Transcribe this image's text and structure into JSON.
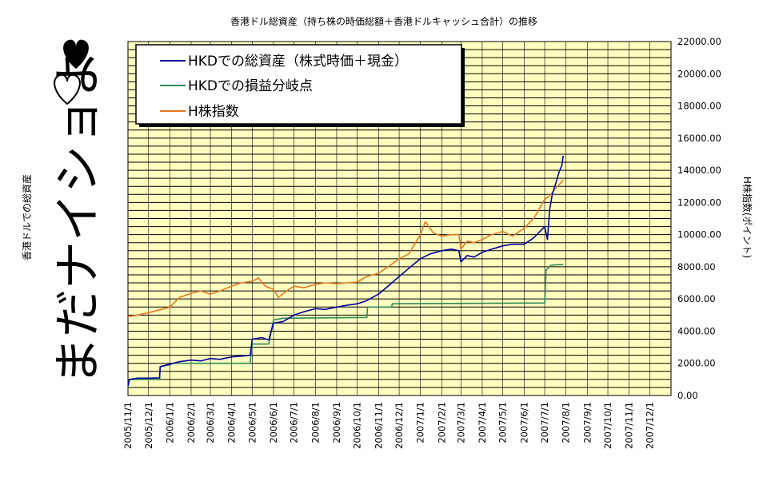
{
  "chart_data": {
    "type": "line",
    "title": "香港ドル総資産（持ち株の時価総額＋香港ドルキャッシュ合計）の推移",
    "ylabel_left": "香港ドルでの総資産",
    "ylabel_right": "H株指数(ポイント)",
    "side_text": "まだナイショよ",
    "ylim": [
      0,
      22000
    ],
    "y_ticks": [
      "0.00",
      "2000.00",
      "4000.00",
      "6000.00",
      "8000.00",
      "10000.00",
      "12000.00",
      "14000.00",
      "16000.00",
      "18000.00",
      "20000.00",
      "22000.00"
    ],
    "x_ticks": [
      "2005/11/1",
      "2005/12/1",
      "2006/1/1",
      "2006/2/1",
      "2006/3/1",
      "2006/4/1",
      "2006/5/1",
      "2006/6/1",
      "2006/7/1",
      "2006/8/1",
      "2006/9/1",
      "2006/10/1",
      "2006/11/1",
      "2006/12/1",
      "2007/1/1",
      "2007/2/1",
      "2007/3/1",
      "2007/4/1",
      "2007/5/1",
      "2007/6/1",
      "2007/7/1",
      "2007/8/1",
      "2007/9/1",
      "2007/10/1",
      "2007/11/1",
      "2007/12/1"
    ],
    "grid": true,
    "legend_position": "top-left",
    "series": [
      {
        "name": "HKDでの総資産（株式時価＋現金）",
        "color": "#0000a0",
        "points": [
          [
            "2005/11/1",
            600
          ],
          [
            "2005/11/3",
            1000
          ],
          [
            "2005/11/15",
            1080
          ],
          [
            "2005/12/1",
            1080
          ],
          [
            "2005/12/17",
            1100
          ],
          [
            "2005/12/18",
            1800
          ],
          [
            "2006/1/1",
            1950
          ],
          [
            "2006/1/15",
            2100
          ],
          [
            "2006/2/1",
            2200
          ],
          [
            "2006/2/15",
            2150
          ],
          [
            "2006/3/1",
            2300
          ],
          [
            "2006/3/15",
            2250
          ],
          [
            "2006/4/1",
            2400
          ],
          [
            "2006/4/15",
            2450
          ],
          [
            "2006/4/28",
            2500
          ],
          [
            "2006/5/1",
            3500
          ],
          [
            "2006/5/15",
            3600
          ],
          [
            "2006/5/25",
            3450
          ],
          [
            "2006/6/1",
            4500
          ],
          [
            "2006/6/15",
            4600
          ],
          [
            "2006/7/1",
            5000
          ],
          [
            "2006/7/15",
            5200
          ],
          [
            "2006/8/1",
            5400
          ],
          [
            "2006/8/15",
            5350
          ],
          [
            "2006/9/1",
            5500
          ],
          [
            "2006/9/15",
            5600
          ],
          [
            "2006/10/1",
            5700
          ],
          [
            "2006/10/15",
            5900
          ],
          [
            "2006/11/1",
            6300
          ],
          [
            "2006/11/15",
            6800
          ],
          [
            "2006/12/1",
            7400
          ],
          [
            "2006/12/15",
            7900
          ],
          [
            "2007/1/1",
            8500
          ],
          [
            "2007/1/15",
            8800
          ],
          [
            "2007/2/1",
            9000
          ],
          [
            "2007/2/15",
            9100
          ],
          [
            "2007/2/26",
            9000
          ],
          [
            "2007/3/1",
            8300
          ],
          [
            "2007/3/10",
            8700
          ],
          [
            "2007/3/20",
            8600
          ],
          [
            "2007/4/1",
            8900
          ],
          [
            "2007/4/15",
            9100
          ],
          [
            "2007/5/1",
            9300
          ],
          [
            "2007/5/15",
            9400
          ],
          [
            "2007/6/1",
            9400
          ],
          [
            "2007/6/15",
            9800
          ],
          [
            "2007/7/1",
            10500
          ],
          [
            "2007/7/5",
            9700
          ],
          [
            "2007/7/8",
            11500
          ],
          [
            "2007/7/12",
            12500
          ],
          [
            "2007/7/18",
            13300
          ],
          [
            "2007/7/22",
            13900
          ],
          [
            "2007/7/26",
            14300
          ],
          [
            "2007/7/28",
            14900
          ]
        ]
      },
      {
        "name": "HKDでの損益分岐点",
        "color": "#2e8b57",
        "points": [
          [
            "2005/11/1",
            500
          ],
          [
            "2005/11/3",
            1000
          ],
          [
            "2005/12/17",
            1000
          ],
          [
            "2005/12/18",
            1800
          ],
          [
            "2006/1/1",
            1900
          ],
          [
            "2006/1/5",
            2000
          ],
          [
            "2006/4/28",
            2000
          ],
          [
            "2006/5/1",
            3200
          ],
          [
            "2006/5/25",
            3200
          ],
          [
            "2006/6/1",
            4700
          ],
          [
            "2006/6/15",
            4800
          ],
          [
            "2006/10/15",
            4850
          ],
          [
            "2006/10/16",
            5500
          ],
          [
            "2006/11/20",
            5500
          ],
          [
            "2006/11/21",
            5700
          ],
          [
            "2007/7/1",
            5750
          ],
          [
            "2007/7/3",
            7800
          ],
          [
            "2007/7/10",
            8100
          ],
          [
            "2007/7/28",
            8150
          ]
        ]
      },
      {
        "name": "H株指数",
        "color": "#e87722",
        "points": [
          [
            "2005/11/1",
            4900
          ],
          [
            "2005/11/15",
            5000
          ],
          [
            "2005/12/1",
            5150
          ],
          [
            "2005/12/15",
            5300
          ],
          [
            "2006/1/1",
            5500
          ],
          [
            "2006/1/15",
            6100
          ],
          [
            "2006/2/1",
            6350
          ],
          [
            "2006/2/15",
            6500
          ],
          [
            "2006/3/1",
            6300
          ],
          [
            "2006/3/15",
            6500
          ],
          [
            "2006/4/1",
            6800
          ],
          [
            "2006/4/15",
            7000
          ],
          [
            "2006/5/1",
            7100
          ],
          [
            "2006/5/10",
            7300
          ],
          [
            "2006/5/20",
            6800
          ],
          [
            "2006/6/1",
            6600
          ],
          [
            "2006/6/8",
            6100
          ],
          [
            "2006/6/20",
            6500
          ],
          [
            "2006/7/1",
            6800
          ],
          [
            "2006/7/15",
            6700
          ],
          [
            "2006/8/1",
            6900
          ],
          [
            "2006/8/15",
            7000
          ],
          [
            "2006/9/1",
            6950
          ],
          [
            "2006/9/15",
            7000
          ],
          [
            "2006/10/1",
            7050
          ],
          [
            "2006/10/15",
            7400
          ],
          [
            "2006/11/1",
            7600
          ],
          [
            "2006/11/15",
            8000
          ],
          [
            "2006/12/1",
            8500
          ],
          [
            "2006/12/15",
            8800
          ],
          [
            "2007/1/1",
            10000
          ],
          [
            "2007/1/8",
            10800
          ],
          [
            "2007/1/20",
            10100
          ],
          [
            "2007/2/1",
            9900
          ],
          [
            "2007/2/15",
            10000
          ],
          [
            "2007/2/26",
            10000
          ],
          [
            "2007/3/1",
            9100
          ],
          [
            "2007/3/10",
            9600
          ],
          [
            "2007/3/20",
            9500
          ],
          [
            "2007/4/1",
            9700
          ],
          [
            "2007/4/15",
            10000
          ],
          [
            "2007/5/1",
            10200
          ],
          [
            "2007/5/15",
            9900
          ],
          [
            "2007/6/1",
            10400
          ],
          [
            "2007/6/15",
            11000
          ],
          [
            "2007/7/1",
            12200
          ],
          [
            "2007/7/8",
            12400
          ],
          [
            "2007/7/15",
            12800
          ],
          [
            "2007/7/22",
            13100
          ],
          [
            "2007/7/28",
            13400
          ]
        ]
      }
    ]
  },
  "colors": {
    "plot_background": "#ffffc0",
    "grid": "#000000",
    "hearts": "#000000"
  }
}
